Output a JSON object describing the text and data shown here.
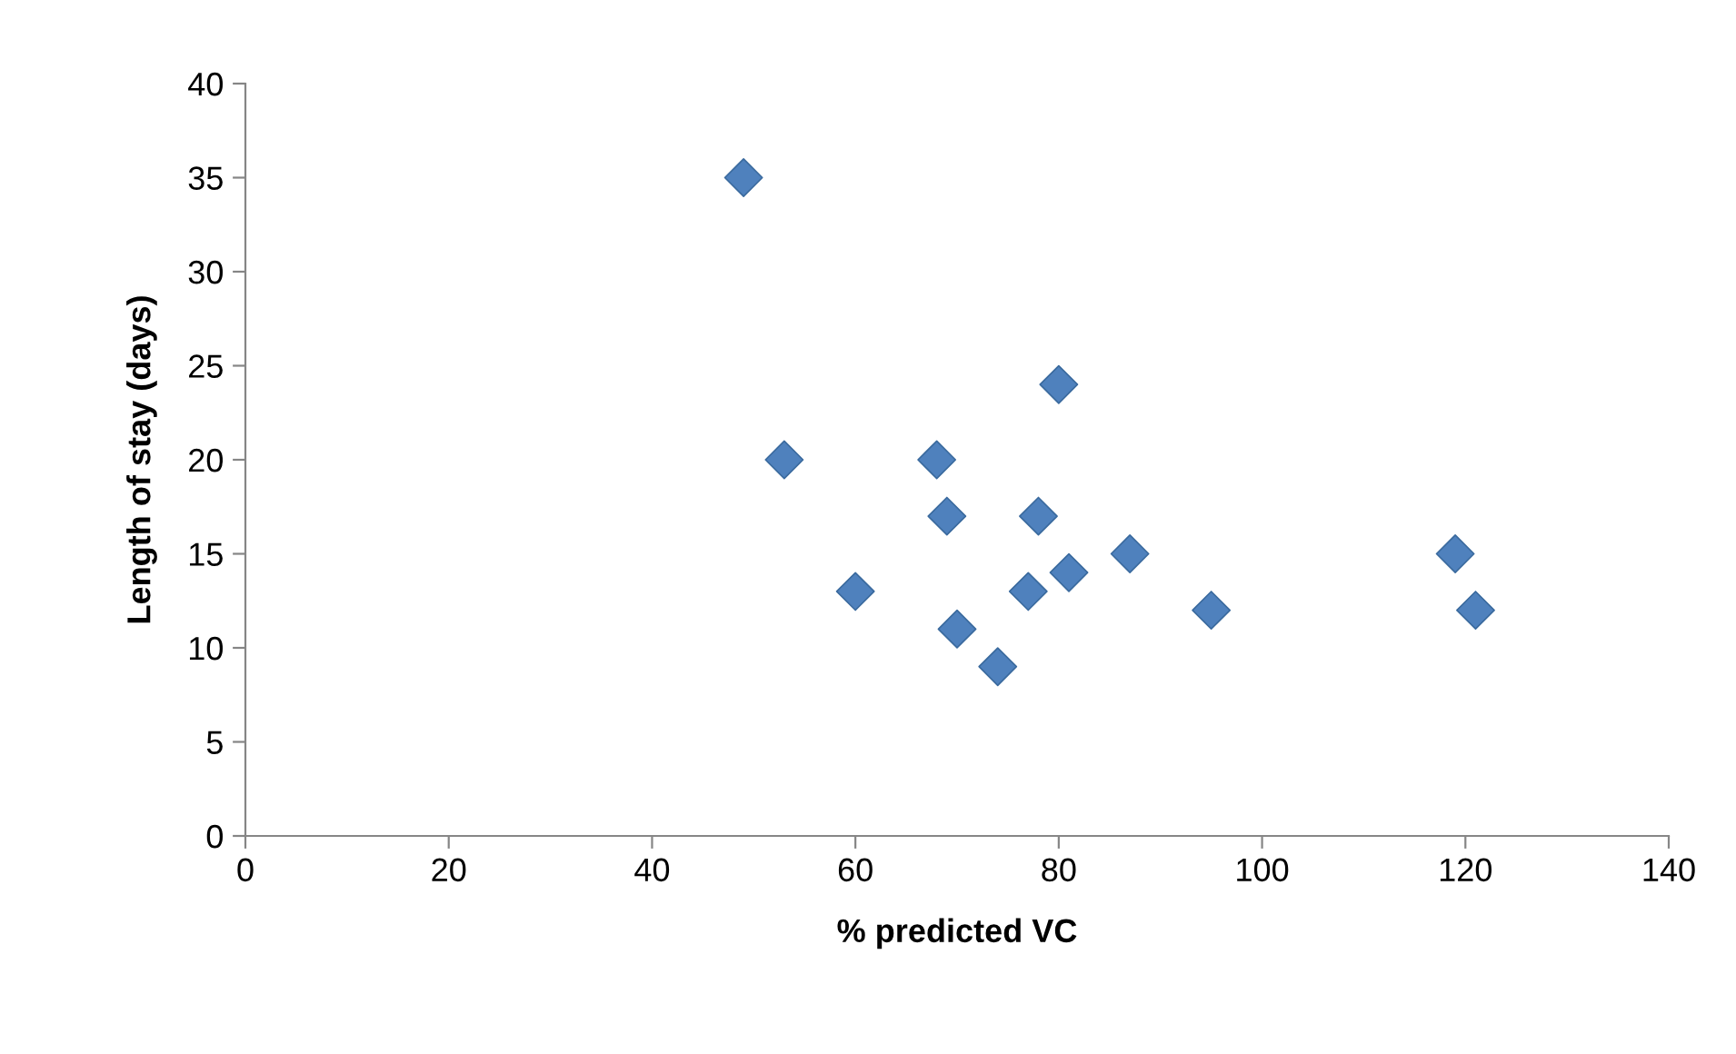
{
  "chart_data": {
    "type": "scatter",
    "xlabel": "% predicted VC",
    "ylabel": "Length of stay (days)",
    "x": [
      49,
      53,
      60,
      68,
      69,
      70,
      74,
      77,
      78,
      80,
      81,
      87,
      95,
      119,
      121
    ],
    "values": [
      35,
      20,
      13,
      20,
      17,
      11,
      9,
      13,
      17,
      24,
      14,
      15,
      12,
      15,
      12
    ],
    "color": "#4f81bd",
    "marker": "diamond",
    "xlim": [
      0,
      140
    ],
    "xticks": [
      0,
      20,
      40,
      60,
      80,
      100,
      120,
      140
    ],
    "ylim": [
      0,
      40
    ],
    "yticks": [
      0,
      5,
      10,
      15,
      20,
      25,
      30,
      35,
      40
    ],
    "grid": false,
    "legend": false
  }
}
